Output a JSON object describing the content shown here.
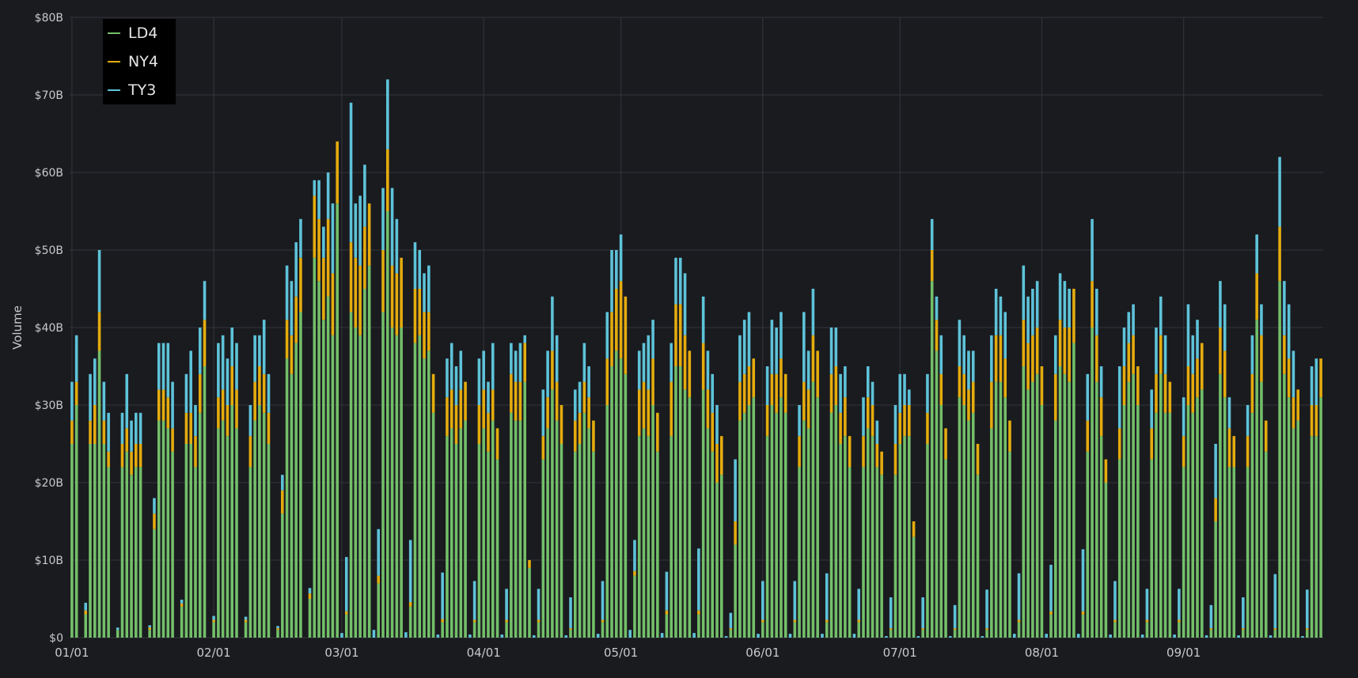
{
  "chart_data": {
    "type": "bar",
    "stacked": true,
    "ylabel": "Volume",
    "ylim": [
      0,
      80
    ],
    "yticks": [
      "$0",
      "$10B",
      "$20B",
      "$30B",
      "$40B",
      "$50B",
      "$60B",
      "$70B",
      "$80B"
    ],
    "xticks": [
      {
        "label": "01/01",
        "day": 1
      },
      {
        "label": "02/01",
        "day": 32
      },
      {
        "label": "03/01",
        "day": 60
      },
      {
        "label": "04/01",
        "day": 91
      },
      {
        "label": "05/01",
        "day": 121
      },
      {
        "label": "06/01",
        "day": 152
      },
      {
        "label": "07/01",
        "day": 182
      },
      {
        "label": "08/01",
        "day": 213
      },
      {
        "label": "09/01",
        "day": 244
      }
    ],
    "series": [
      {
        "name": "LD4",
        "color": "#73bf69",
        "values": [
          25,
          30,
          0,
          3,
          25,
          25,
          37,
          25,
          22,
          0,
          1,
          22,
          24,
          21,
          22,
          22,
          0,
          1,
          14,
          28,
          28,
          27,
          24,
          0,
          4,
          25,
          25,
          22,
          29,
          35,
          0,
          2,
          27,
          28,
          26,
          30,
          27,
          0,
          2,
          22,
          28,
          30,
          29,
          25,
          0,
          1,
          16,
          36,
          34,
          38,
          42,
          0,
          5,
          49,
          46,
          41,
          44,
          39,
          56,
          0,
          3,
          42,
          40,
          39,
          45,
          48,
          0,
          7,
          42,
          55,
          40,
          39,
          40,
          0,
          4,
          38,
          39,
          36,
          37,
          29,
          0,
          2,
          26,
          27,
          25,
          27,
          28,
          0,
          2,
          25,
          27,
          24,
          28,
          23,
          0,
          2,
          29,
          28,
          28,
          33,
          9,
          0,
          2,
          23,
          27,
          32,
          28,
          25,
          0,
          1,
          24,
          25,
          29,
          27,
          24,
          0,
          2,
          30,
          35,
          37,
          36,
          34,
          0,
          8,
          26,
          27,
          26,
          30,
          24,
          0,
          3,
          26,
          35,
          35,
          32,
          31,
          0,
          3,
          32,
          27,
          24,
          20,
          21,
          0,
          1,
          12,
          28,
          29,
          30,
          31,
          0,
          2,
          26,
          30,
          29,
          31,
          29,
          0,
          2,
          22,
          28,
          27,
          33,
          31,
          0,
          2,
          29,
          30,
          25,
          26,
          22,
          0,
          2,
          22,
          27,
          26,
          22,
          21,
          0,
          1,
          21,
          25,
          26,
          26,
          13,
          0,
          1,
          25,
          46,
          37,
          30,
          23,
          0,
          1,
          31,
          30,
          28,
          29,
          21,
          0,
          1,
          27,
          33,
          33,
          31,
          24,
          0,
          2,
          35,
          32,
          33,
          34,
          30,
          0,
          3,
          28,
          35,
          34,
          33,
          38,
          0,
          3,
          24,
          40,
          33,
          26,
          20,
          0,
          2,
          23,
          30,
          33,
          34,
          30,
          0,
          2,
          23,
          29,
          34,
          29,
          29,
          0,
          2,
          22,
          30,
          29,
          31,
          32,
          0,
          1,
          15,
          34,
          31,
          22,
          22,
          0,
          1,
          22,
          29,
          41,
          33,
          24,
          0,
          1,
          46,
          34,
          31,
          27,
          28,
          0,
          1,
          26,
          26,
          31
        ]
      },
      {
        "name": "NY4",
        "color": "#e5ac0e",
        "values": [
          3,
          3,
          0,
          0.5,
          3,
          5,
          5,
          3,
          2,
          0,
          0,
          3,
          3,
          3,
          3,
          3,
          0,
          0.3,
          2,
          4,
          4,
          4,
          3,
          0,
          0.4,
          4,
          4,
          4,
          5,
          6,
          0,
          0.3,
          4,
          4,
          4,
          5,
          5,
          0,
          0.3,
          4,
          5,
          5,
          5,
          4,
          0,
          0.2,
          3,
          5,
          5,
          6,
          7,
          0,
          0.7,
          8,
          8,
          8,
          10,
          8,
          8,
          0,
          0.4,
          9,
          9,
          9,
          8,
          8,
          0,
          1,
          8,
          8,
          8,
          8,
          9,
          0,
          0.6,
          7,
          6,
          6,
          5,
          5,
          0,
          0.4,
          5,
          5,
          5,
          5,
          5,
          0,
          0.3,
          5,
          5,
          5,
          4,
          4,
          0,
          0.3,
          5,
          5,
          5,
          5,
          1,
          0,
          0.3,
          3,
          4,
          5,
          5,
          5,
          0,
          0.2,
          4,
          4,
          4,
          4,
          4,
          0,
          0.3,
          6,
          7,
          8,
          10,
          10,
          0,
          0.6,
          6,
          6,
          6,
          6,
          5,
          0,
          0.5,
          7,
          8,
          8,
          7,
          6,
          0,
          0.5,
          6,
          5,
          5,
          5,
          5,
          0,
          0.2,
          3,
          5,
          5,
          5,
          5,
          0,
          0.3,
          4,
          4,
          5,
          5,
          5,
          0,
          0.3,
          4,
          5,
          5,
          6,
          6,
          0,
          0.3,
          5,
          5,
          4,
          5,
          4,
          0,
          0.3,
          4,
          4,
          4,
          3,
          3,
          0,
          0.2,
          4,
          4,
          4,
          4,
          2,
          0,
          0.2,
          4,
          4,
          4,
          4,
          4,
          0,
          0.2,
          4,
          4,
          4,
          4,
          4,
          0,
          0.2,
          6,
          6,
          6,
          5,
          4,
          0,
          0.3,
          6,
          6,
          6,
          6,
          5,
          0,
          0.4,
          6,
          6,
          6,
          7,
          7,
          0,
          0.4,
          4,
          6,
          6,
          5,
          3,
          0,
          0.3,
          4,
          5,
          5,
          5,
          5,
          0,
          0.3,
          4,
          5,
          5,
          5,
          4,
          0,
          0.3,
          4,
          5,
          5,
          5,
          6,
          0,
          0.2,
          3,
          6,
          6,
          5,
          4,
          0,
          0.2,
          4,
          5,
          6,
          6,
          4,
          0,
          0.2,
          7,
          5,
          5,
          4,
          4,
          0,
          0.2,
          4,
          4,
          5
        ]
      },
      {
        "name": "TY3",
        "color": "#5ec3d9",
        "values": [
          5,
          6,
          0,
          1,
          6,
          6,
          8,
          5,
          5,
          0,
          0.3,
          4,
          7,
          4,
          4,
          4,
          0,
          0.3,
          2,
          6,
          6,
          7,
          6,
          0,
          0.5,
          5,
          8,
          4,
          6,
          5,
          0,
          0.5,
          7,
          7,
          6,
          5,
          6,
          0,
          0.4,
          4,
          6,
          4,
          7,
          5,
          0,
          0.3,
          2,
          7,
          7,
          7,
          5,
          0,
          0.7,
          2,
          5,
          4,
          6,
          9,
          0,
          0.6,
          7,
          18,
          7,
          9,
          8,
          0,
          1,
          6,
          8,
          9,
          10,
          7,
          0,
          0.7,
          8,
          6,
          5,
          5,
          6,
          0,
          0.4,
          6,
          5,
          6,
          5,
          5,
          0,
          0.4,
          5,
          6,
          5,
          4,
          6,
          0,
          0.4,
          4,
          4,
          4,
          5,
          1,
          0,
          0.3,
          4,
          6,
          6,
          7,
          6,
          0,
          0.3,
          4,
          4,
          4,
          5,
          4,
          0,
          0.5,
          5,
          6,
          8,
          5,
          6,
          0,
          1,
          4,
          5,
          5,
          7,
          5,
          0,
          0.6,
          5,
          5,
          6,
          6,
          8,
          0,
          0.6,
          8,
          6,
          5,
          5,
          5,
          0,
          0.2,
          2,
          8,
          6,
          7,
          7,
          0,
          0.5,
          5,
          5,
          7,
          6,
          6,
          0,
          0.5,
          5,
          4,
          9,
          5,
          6,
          0,
          0.5,
          6,
          6,
          5,
          5,
          4,
          0,
          0.5,
          4,
          5,
          4,
          3,
          3,
          0,
          0.2,
          4,
          5,
          5,
          4,
          2,
          0,
          0.2,
          4,
          5,
          4,
          3,
          5,
          0,
          0.2,
          3,
          6,
          5,
          5,
          4,
          0,
          0.2,
          5,
          6,
          6,
          5,
          6,
          0,
          0.5,
          6,
          7,
          6,
          6,
          6,
          0,
          0.5,
          6,
          5,
          6,
          6,
          5,
          0,
          0.5,
          8,
          6,
          8,
          6,
          4,
          0,
          0.4,
          5,
          8,
          5,
          4,
          4,
          0,
          0.4,
          4,
          5,
          6,
          5,
          5,
          0,
          0.4,
          4,
          5,
          8,
          5,
          5,
          0,
          0.3,
          3,
          7,
          6,
          6,
          4,
          0,
          0.3,
          4,
          4,
          5,
          5,
          4,
          0,
          0.3,
          7,
          9,
          7,
          7,
          6,
          0,
          0.2,
          5,
          5,
          6
        ]
      }
    ]
  }
}
